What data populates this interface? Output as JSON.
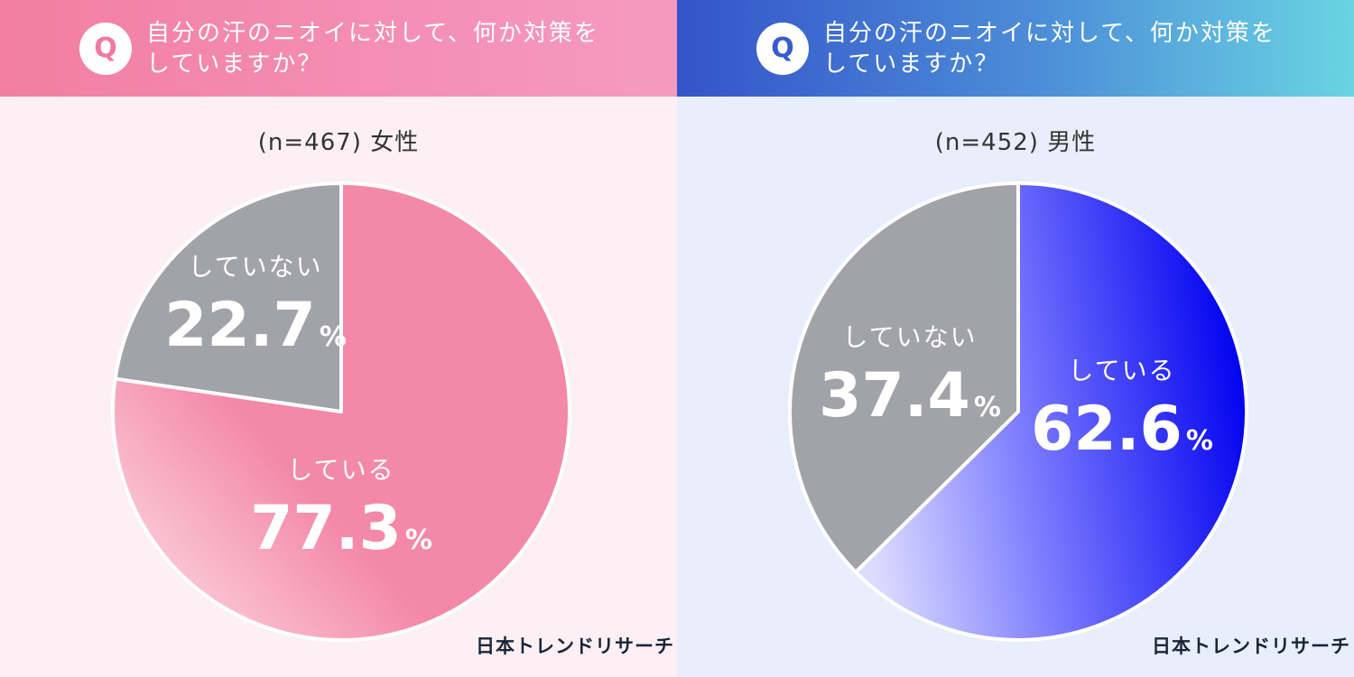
{
  "panels": [
    {
      "question_line1": "自分の汗のニオイに対して、何か対策を",
      "question_line2": "していますか？",
      "q_label": "Q",
      "sample": "(n=467) 女性",
      "logo": "日本トレンドリサーチ"
    },
    {
      "question_line1": "自分の汗のニオイに対して、何か対策を",
      "question_line2": "していますか？",
      "q_label": "Q",
      "sample": "(n=452) 男性",
      "logo": "日本トレンドリサーチ"
    }
  ],
  "colors": {
    "female_yes": "#f488a8",
    "female_no": "#a2a3a8",
    "male_yes": "#1e1ef5",
    "male_no": "#a2a3a8"
  },
  "chart_data": [
    {
      "type": "pie",
      "title": "(n=467) 女性",
      "categories": [
        "している",
        "していない"
      ],
      "values": [
        77.3,
        22.7
      ],
      "unit": "%"
    },
    {
      "type": "pie",
      "title": "(n=452) 男性",
      "categories": [
        "している",
        "していない"
      ],
      "values": [
        62.6,
        37.4
      ],
      "unit": "%"
    }
  ]
}
